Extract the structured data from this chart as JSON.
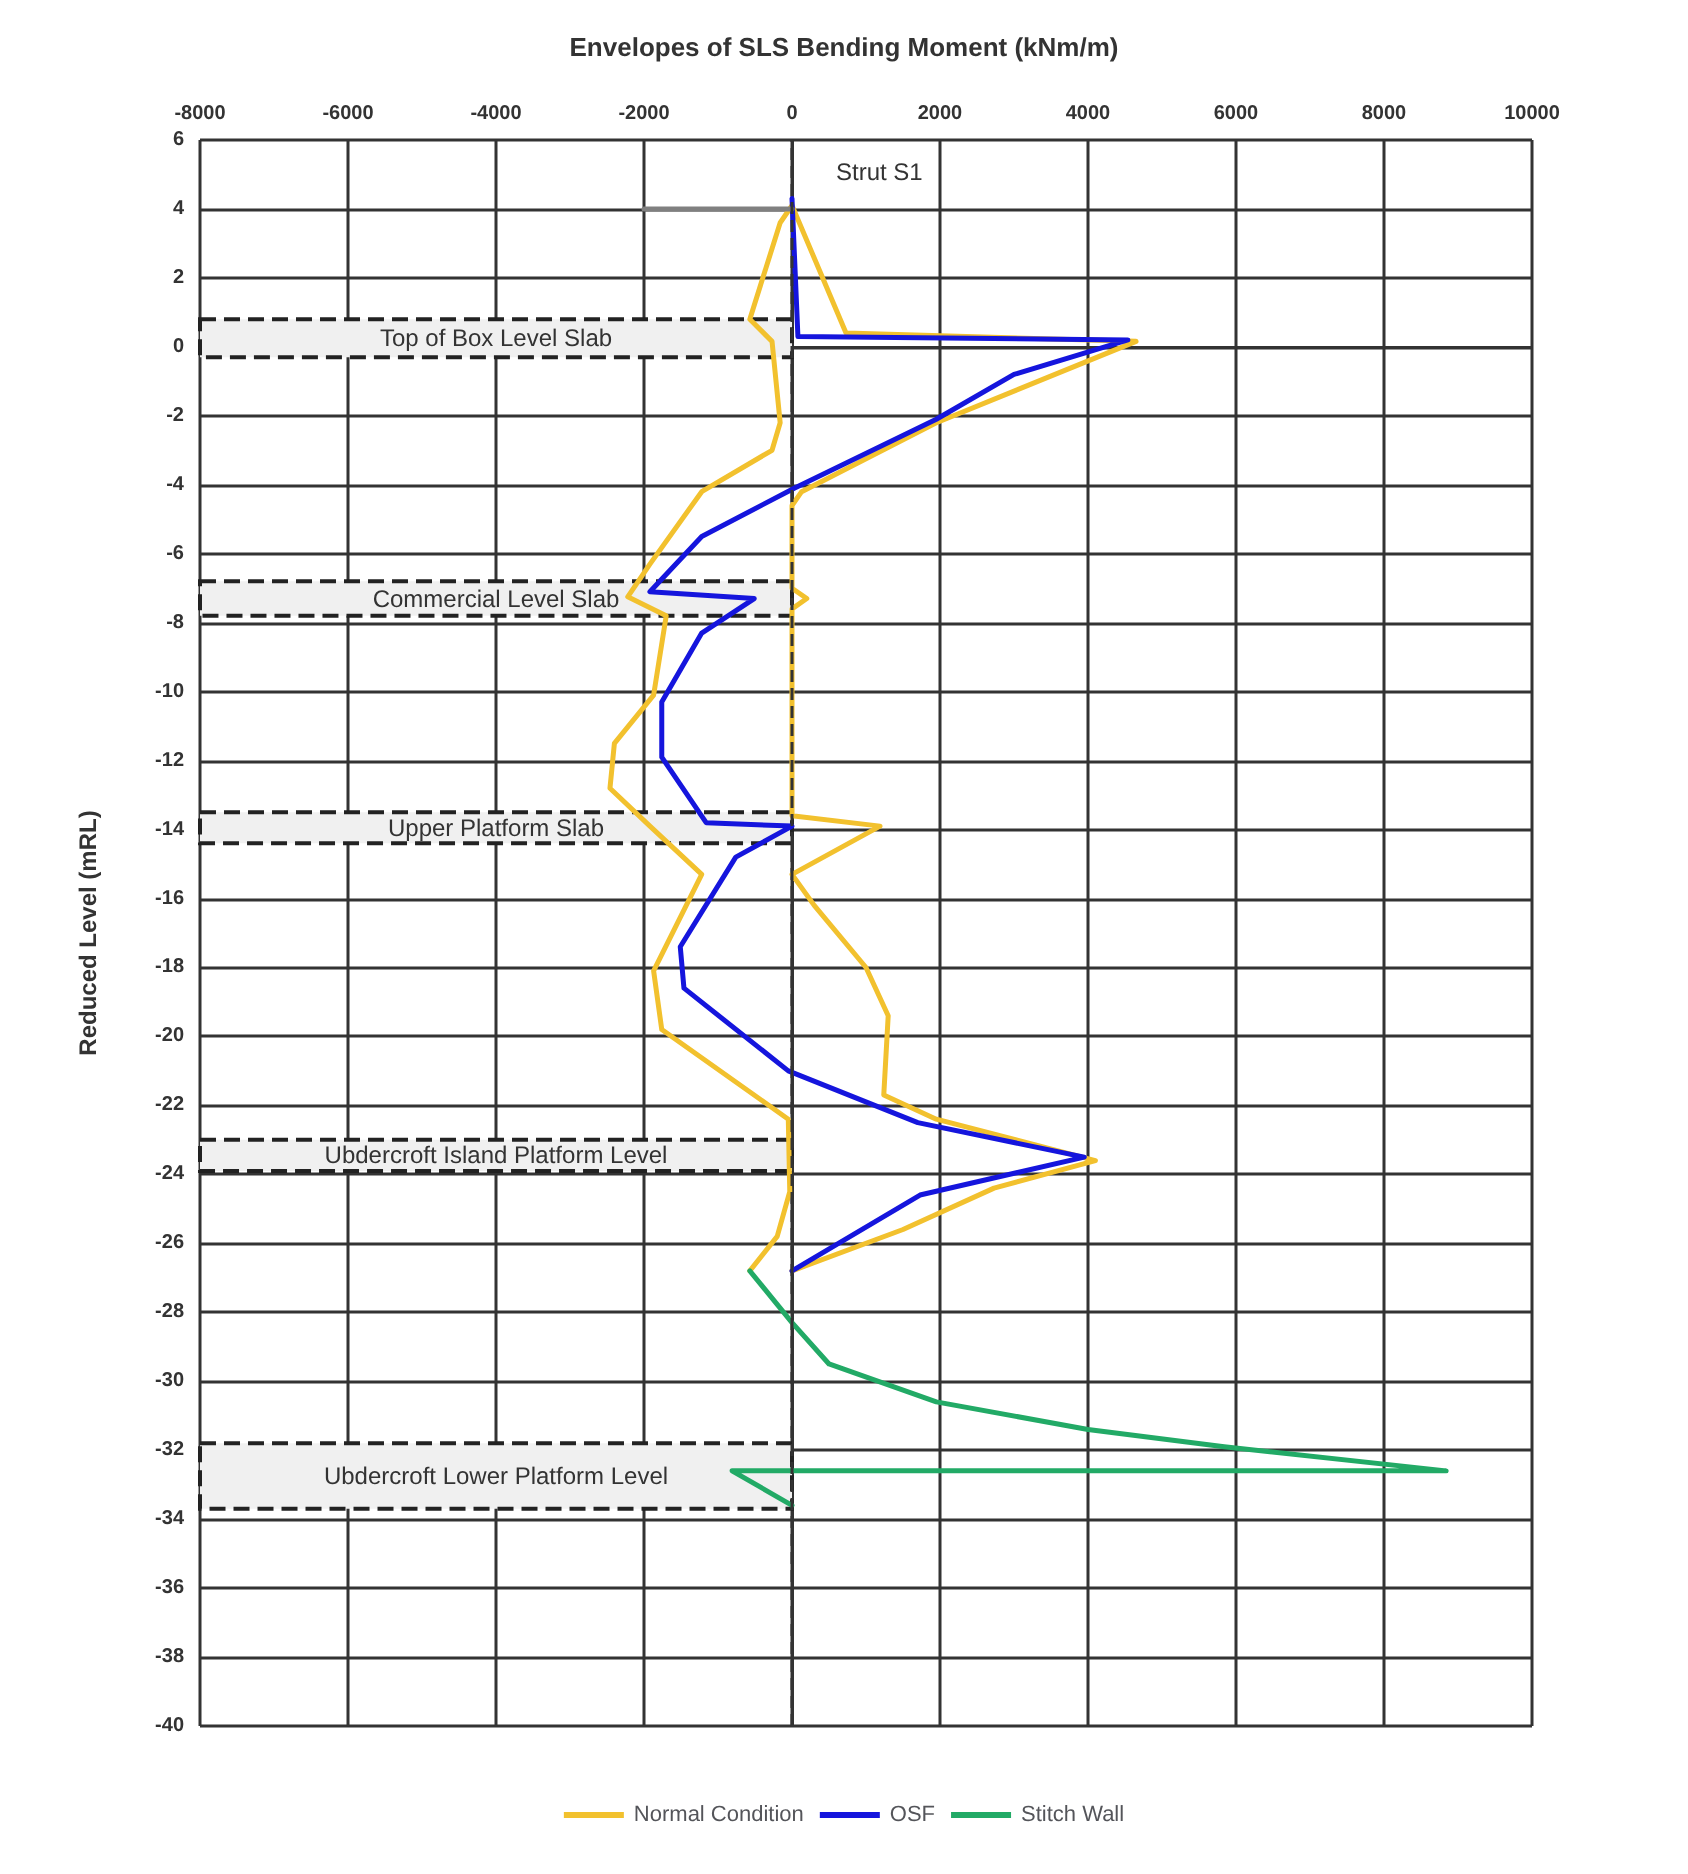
{
  "chart_data": {
    "type": "line",
    "title": "Envelopes of SLS Bending Moment (kNm/m)",
    "ylabel": "Reduced Level (mRL)",
    "xlim": [
      -8000,
      10000
    ],
    "xticks": [
      -8000,
      -6000,
      -4000,
      -2000,
      0,
      2000,
      4000,
      6000,
      8000,
      10000
    ],
    "ylim": [
      -40,
      6
    ],
    "yticks": [
      -40,
      -38,
      -36,
      -34,
      -32,
      -30,
      -28,
      -26,
      -24,
      -22,
      -20,
      -18,
      -16,
      -14,
      -12,
      -10,
      -8,
      -6,
      -4,
      -2,
      0,
      2,
      4,
      6
    ],
    "grid": true,
    "legend": "bottom",
    "marker": "none",
    "line_style": "solid",
    "series": [
      {
        "name": "Normal Condition",
        "color": "#f2c12e",
        "x": [
          -570,
          -200,
          -30,
          -50,
          -1760,
          -1870,
          -1220,
          -1920,
          -2460,
          -2400,
          -1870,
          -1700,
          -2220,
          -1920,
          -1220,
          -270,
          -160,
          -270,
          -570,
          -160,
          0,
          730,
          4650,
          1950,
          130,
          0,
          0,
          200,
          0,
          0,
          1190,
          0,
          300,
          1000,
          1300,
          1240,
          1950,
          4100,
          2730,
          1500,
          0
        ],
        "values": [
          -26.8,
          -25.8,
          -24.5,
          -22.4,
          -19.8,
          -18.1,
          -15.3,
          -13.9,
          -12.8,
          -11.5,
          -10.1,
          -7.8,
          -7.25,
          -6.3,
          -4.2,
          -3,
          -2.2,
          0.16,
          0.8,
          3.6,
          4.1,
          0.4,
          0.16,
          -2.2,
          -4.2,
          -4.6,
          -7,
          -7.3,
          -7.6,
          -13.6,
          -13.9,
          -15.3,
          -16.2,
          -18,
          -19.4,
          -21.7,
          -22.4,
          -23.6,
          -24.4,
          -25.6,
          -26.8
        ]
      },
      {
        "name": "OSF",
        "color": "#1515dd",
        "x": [
          0,
          80,
          4540,
          3000,
          1950,
          30,
          -1220,
          -1920,
          -510,
          -1220,
          -1760,
          -1760,
          -1160,
          0,
          -760,
          -1510,
          -1460,
          -50,
          1700,
          3950,
          1730,
          0
        ],
        "values": [
          4.3,
          0.3,
          0.2,
          -0.8,
          -2.1,
          -4.1,
          -5.5,
          -7.1,
          -7.3,
          -8.3,
          -10.3,
          -11.9,
          -13.8,
          -13.9,
          -14.8,
          -17.4,
          -18.6,
          -21,
          -22.5,
          -23.5,
          -24.6,
          -26.8
        ]
      },
      {
        "name": "Stitch Wall",
        "color": "#22aa66",
        "x": [
          -570,
          0,
          500,
          1950,
          4000,
          5840,
          8840,
          -810,
          0
        ],
        "values": [
          -26.8,
          -28.3,
          -29.5,
          -30.6,
          -31.4,
          -31.9,
          -32.6,
          -32.6,
          -33.6
        ]
      },
      {
        "color": "#808080",
        "x": [
          -2000,
          0
        ],
        "values": [
          4,
          4
        ]
      }
    ],
    "ref_lines": [
      {
        "axis": "x",
        "value": 0,
        "line_style": "dashed",
        "color": "#333333"
      }
    ],
    "bands": [
      {
        "axis": "y",
        "from": 0.8,
        "to": -0.3,
        "label": "Top of Box Level Slab",
        "color": "#f0f0f0"
      },
      {
        "axis": "y",
        "from": -6.8,
        "to": -7.8,
        "label": "Commercial Level Slab",
        "color": "#f0f0f0"
      },
      {
        "axis": "y",
        "from": -13.5,
        "to": -14.4,
        "label": "Upper Platform Slab",
        "color": "#f0f0f0"
      },
      {
        "axis": "y",
        "from": -23,
        "to": -23.9,
        "label": "Ubdercroft Island Platform Level",
        "color": "#f0f0f0"
      },
      {
        "axis": "y",
        "from": -31.8,
        "to": -33.7,
        "label": "Ubdercroft Lower Platform Level",
        "color": "#f0f0f0"
      }
    ],
    "annotations": [
      "Strut S1"
    ]
  }
}
